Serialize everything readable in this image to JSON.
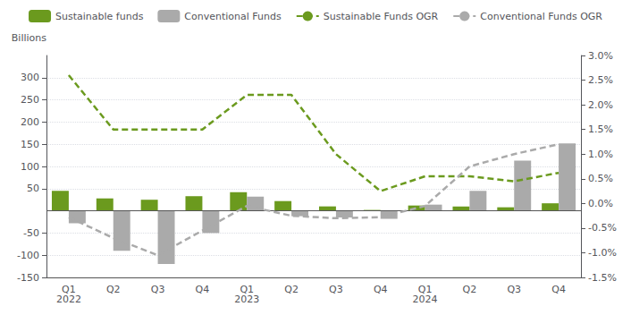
{
  "chart_data": {
    "type": "bar",
    "categories": [
      "Q1\n2022",
      "Q2",
      "Q3",
      "Q4",
      "Q1\n2023",
      "Q2",
      "Q3",
      "Q4",
      "Q1\n2024",
      "Q2",
      "Q3",
      "Q4"
    ],
    "ylabel": "Billions",
    "ylim": [
      -150,
      350
    ],
    "yticks": [
      -150,
      -100,
      -50,
      50,
      100,
      150,
      200,
      250,
      300
    ],
    "y2lim": [
      -1.5,
      3.0
    ],
    "y2ticks": [
      {
        "value": -1.5,
        "label": "-1.5%"
      },
      {
        "value": -1.0,
        "label": "-1.0%"
      },
      {
        "value": -0.5,
        "label": "-0.5%"
      },
      {
        "value": 0.0,
        "label": "0.0%"
      },
      {
        "value": 0.5,
        "label": "0.5%"
      },
      {
        "value": 1.0,
        "label": "1.0%"
      },
      {
        "value": 1.5,
        "label": "1.5%"
      },
      {
        "value": 2.0,
        "label": "2.0%"
      },
      {
        "value": 2.5,
        "label": "2.5%"
      },
      {
        "value": 3.0,
        "label": "3.0%"
      }
    ],
    "grid": true,
    "legend": "top",
    "series": [
      {
        "name": "Sustainable funds",
        "type": "bar",
        "color": "#6b9a1e",
        "values": [
          45,
          28,
          25,
          33,
          42,
          22,
          10,
          2,
          12,
          10,
          8,
          17
        ]
      },
      {
        "name": "Conventional Funds",
        "type": "bar",
        "color": "#aaaaaa",
        "values": [
          -28,
          -90,
          -120,
          -50,
          32,
          -12,
          -15,
          -18,
          14,
          45,
          113,
          152
        ]
      },
      {
        "name": "Sustainable Funds OGR",
        "type": "line",
        "axis": "y2",
        "line_style": "dashed",
        "color": "#6b9a1e",
        "values": [
          2.6,
          1.5,
          1.5,
          1.5,
          2.2,
          2.2,
          1.0,
          0.25,
          0.55,
          0.55,
          0.45,
          0.62
        ]
      },
      {
        "name": "Conventional Funds OGR",
        "type": "line",
        "axis": "y2",
        "line_style": "dashed",
        "color": "#aaaaaa",
        "values": [
          -0.28,
          -0.7,
          -1.05,
          -0.55,
          -0.05,
          -0.25,
          -0.3,
          -0.28,
          -0.05,
          0.75,
          1.0,
          1.2
        ]
      }
    ]
  }
}
